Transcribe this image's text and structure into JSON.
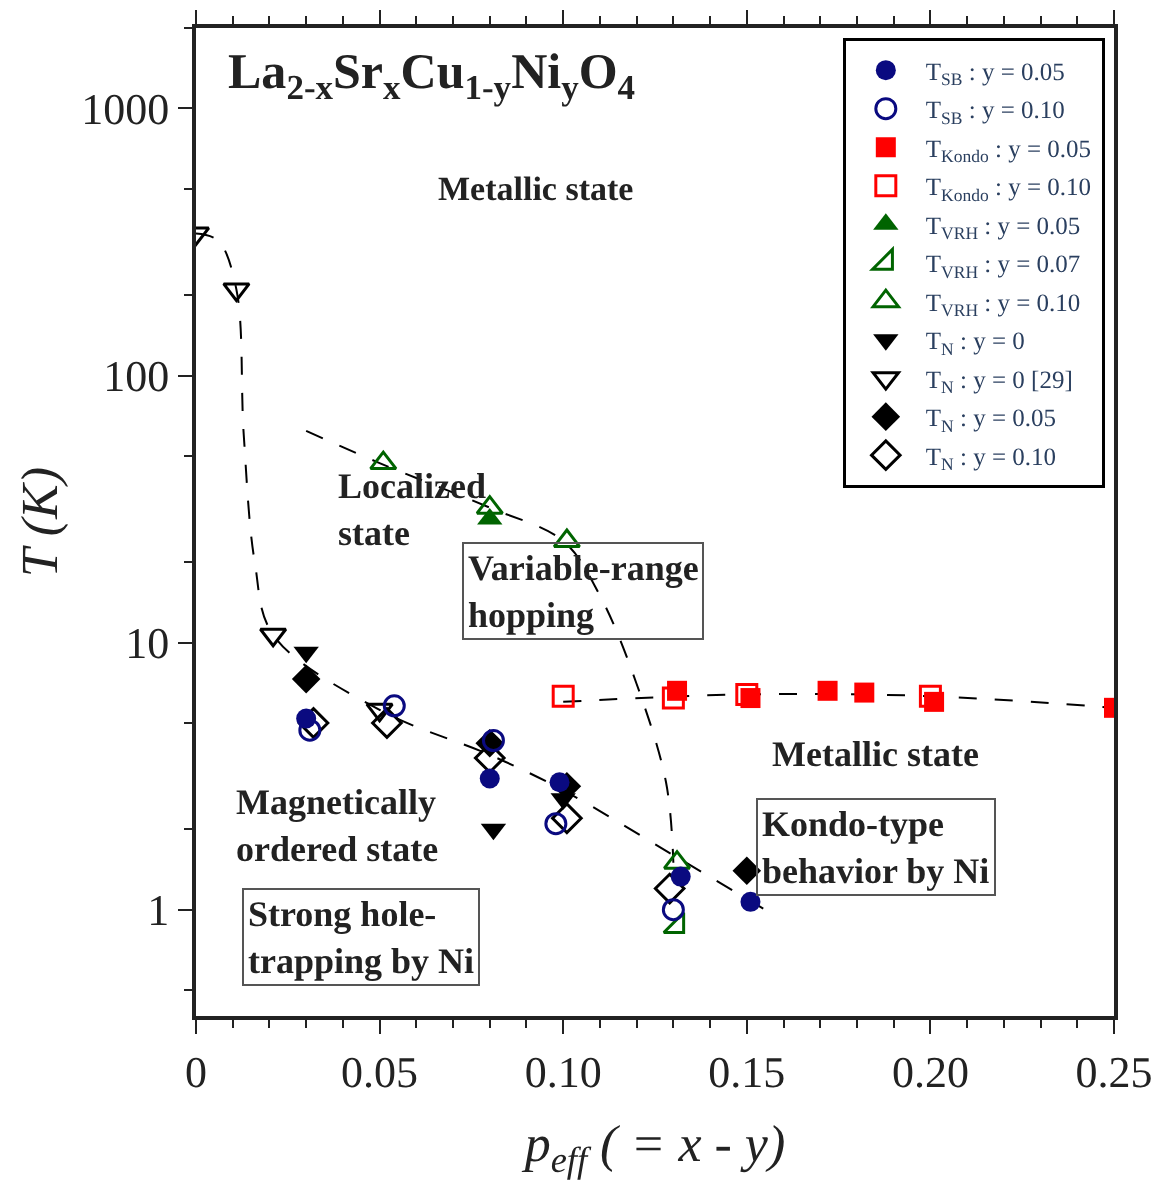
{
  "chart_data": {
    "type": "scatter",
    "title": "La$_{2-x}$Sr$_{x}$Cu$_{1-y}$Ni$_{y}$O$_{4}$",
    "xlabel": "p$_{eff}$ ( = x - y)",
    "ylabel": "T (K)",
    "xlim": [
      0,
      0.25
    ],
    "xticks": [
      0,
      0.05,
      {
        "value": 0.1,
        "label": "0.10"
      },
      0.15,
      {
        "value": 0.2,
        "label": "0.20"
      },
      0.25
    ],
    "ylim": [
      0.4,
      2000
    ],
    "yticks": [
      1,
      10,
      100,
      1000
    ],
    "log": "y",
    "legend": "top right",
    "series": [
      {
        "name": "T$_{SB}$ : y = 0.05",
        "color": "#0a0a80",
        "marker": "circle",
        "x": [
          0.03,
          0.08,
          0.099,
          0.132,
          0.151
        ],
        "values": [
          5.2,
          3.1,
          3.0,
          1.33,
          1.07
        ]
      },
      {
        "name": "T$_{SB}$ : y = 0.10",
        "color": "#0a0a80",
        "marker": "circle-open",
        "x": [
          0.031,
          0.054,
          0.081,
          0.098,
          0.13
        ],
        "values": [
          4.7,
          5.8,
          4.3,
          2.1,
          1.0
        ]
      },
      {
        "name": "T$_{Kondo}$ : y = 0.05",
        "color": "#ff0000",
        "marker": "square",
        "x": [
          0.131,
          0.151,
          0.172,
          0.182,
          0.201,
          0.25
        ],
        "values": [
          6.6,
          6.2,
          6.6,
          6.5,
          6.0,
          5.7
        ]
      },
      {
        "name": "T$_{Kondo}$ : y = 0.10",
        "color": "#ff0000",
        "marker": "square-open",
        "x": [
          0.1,
          0.13,
          0.15,
          0.2
        ],
        "values": [
          6.3,
          6.2,
          6.4,
          6.3
        ]
      },
      {
        "name": "T$_{VRH}$ : y = 0.05",
        "color": "#006400",
        "marker": "triangle",
        "x": [
          0.08
        ],
        "values": [
          29
        ]
      },
      {
        "name": "T$_{VRH}$ : y = 0.07",
        "color": "#006400",
        "marker": "triangle-se-open",
        "x": [
          0.131
        ],
        "values": [
          0.87
        ]
      },
      {
        "name": "T$_{VRH}$ : y = 0.10",
        "color": "#006400",
        "marker": "triangle-open",
        "x": [
          0.051,
          0.08,
          0.101,
          0.131
        ],
        "values": [
          47,
          32,
          24,
          1.5
        ]
      },
      {
        "name": "T$_{N}$ : y = 0",
        "color": "#000000",
        "marker": "triangle-down",
        "x": [
          0.03,
          0.081,
          0.1
        ],
        "values": [
          9.2,
          2.0,
          2.6
        ]
      },
      {
        "name": "T$_{N}$ : y = 0 [29]",
        "color": "#000000",
        "marker": "triangle-down-open",
        "x": [
          0,
          0.011,
          0.021,
          0.05
        ],
        "values": [
          340,
          210,
          10.7,
          5.6
        ]
      },
      {
        "name": "T$_{N}$ : y = 0.05",
        "color": "#000000",
        "marker": "diamond",
        "x": [
          0.03,
          0.08,
          0.101,
          0.15
        ],
        "values": [
          7.3,
          4.2,
          2.9,
          1.4
        ]
      },
      {
        "name": "T$_{N}$ : y = 0.10",
        "color": "#000000",
        "marker": "diamond-open",
        "x": [
          0.032,
          0.052,
          0.08,
          0.101,
          0.129
        ],
        "values": [
          5.0,
          5.0,
          3.7,
          2.2,
          1.2
        ]
      },
      {
        "type": "line",
        "color": "#000000",
        "marker": "none",
        "line_style": "dashed",
        "x": [
          0,
          0.006,
          0.011,
          0.013,
          0.016,
          0.021,
          0.05,
          0.08,
          0.1,
          0.13,
          0.155
        ],
        "values": [
          340,
          320,
          210,
          60,
          20,
          10.7,
          5.6,
          3.8,
          2.8,
          1.6,
          1.0
        ]
      },
      {
        "type": "line",
        "color": "#000000",
        "marker": "none",
        "line_style": "dashed",
        "x": [
          0.03,
          0.05,
          0.08,
          0.1,
          0.11,
          0.12,
          0.128,
          0.13
        ],
        "values": [
          62,
          47,
          32,
          24,
          15,
          7,
          3,
          1.5
        ]
      },
      {
        "type": "line",
        "color": "#000000",
        "marker": "none",
        "line_style": "dashed",
        "x": [
          0.1,
          0.15,
          0.2,
          0.25
        ],
        "values": [
          6.0,
          6.4,
          6.3,
          5.7
        ]
      }
    ],
    "annotations": [
      "Metallic state",
      "Localized\nstate",
      "Variable-range\nhopping",
      "Magnetically\nordered state",
      "Strong hole-\ntrapping by Ni",
      "Metallic state",
      "Kondo-type\nbehavior by Ni"
    ]
  }
}
